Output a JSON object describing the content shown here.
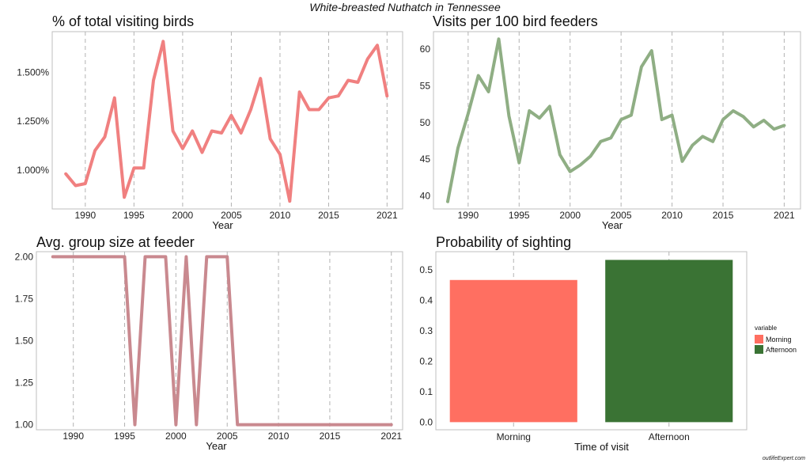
{
  "figure": {
    "suptitle": "White-breasted Nuthatch in Tennessee",
    "credit": "outlifeExpert.com"
  },
  "colors": {
    "pct_line": "#f08080",
    "visits_line": "#8fae84",
    "group_line": "#c9898f",
    "morning": "#ff6f61",
    "afternoon": "#3a7334",
    "grid": "#b3b3b3",
    "frame": "#bfbfbf"
  },
  "chart_data": [
    {
      "type": "line",
      "title": "% of total visiting birds",
      "xlabel": "Year",
      "ylabel": "",
      "x": [
        1988,
        1989,
        1990,
        1991,
        1992,
        1993,
        1994,
        1995,
        1996,
        1997,
        1998,
        1999,
        2000,
        2001,
        2002,
        2003,
        2004,
        2005,
        2006,
        2007,
        2008,
        2009,
        2010,
        2011,
        2012,
        2013,
        2014,
        2015,
        2016,
        2017,
        2018,
        2019,
        2020,
        2021
      ],
      "series": [
        {
          "values": [
            0.98,
            0.92,
            0.93,
            1.1,
            1.17,
            1.37,
            0.86,
            1.01,
            1.01,
            1.46,
            1.66,
            1.2,
            1.11,
            1.2,
            1.09,
            1.2,
            1.19,
            1.28,
            1.19,
            1.31,
            1.47,
            1.16,
            1.08,
            0.84,
            1.4,
            1.31,
            1.31,
            1.37,
            1.38,
            1.46,
            1.45,
            1.57,
            1.64,
            1.38
          ]
        }
      ],
      "xticks": [
        1990,
        1995,
        2000,
        2005,
        2010,
        2015,
        2021
      ],
      "yticks": [
        1.0,
        1.25,
        1.5
      ],
      "ytick_labels": [
        "1.000%",
        "1.250%",
        "1.500%"
      ],
      "xlim": [
        1986.6,
        2022.6
      ],
      "ylim": [
        0.8,
        1.71
      ],
      "grid": "vertical dashed"
    },
    {
      "type": "line",
      "title": "Visits per 100 bird feeders",
      "xlabel": "Year",
      "ylabel": "",
      "x": [
        1988,
        1989,
        1990,
        1991,
        1992,
        1993,
        1994,
        1995,
        1996,
        1997,
        1998,
        1999,
        2000,
        2001,
        2002,
        2003,
        2004,
        2005,
        2006,
        2007,
        2008,
        2009,
        2010,
        2011,
        2012,
        2013,
        2014,
        2015,
        2016,
        2017,
        2018,
        2019,
        2020,
        2021
      ],
      "series": [
        {
          "values": [
            39.2,
            46.5,
            51.2,
            56.4,
            54.2,
            61.4,
            50.9,
            44.5,
            51.6,
            50.6,
            52.2,
            45.6,
            43.3,
            44.2,
            45.4,
            47.4,
            47.9,
            50.4,
            51.0,
            57.6,
            59.8,
            50.4,
            51.0,
            44.7,
            46.9,
            48.1,
            47.4,
            50.4,
            51.6,
            50.8,
            49.4,
            50.3,
            49.1,
            49.6
          ]
        }
      ],
      "xticks": [
        1990,
        1995,
        2000,
        2005,
        2010,
        2015,
        2021
      ],
      "yticks": [
        40,
        45,
        50,
        55,
        60
      ],
      "ytick_labels": [
        "40",
        "45",
        "50",
        "55",
        "60"
      ],
      "xlim": [
        1986.6,
        2022.6
      ],
      "ylim": [
        38.2,
        62.4
      ],
      "grid": "vertical dashed"
    },
    {
      "type": "line",
      "title": "Avg. group size at feeder",
      "xlabel": "Year",
      "ylabel": "",
      "x": [
        1988,
        1989,
        1990,
        1991,
        1992,
        1993,
        1994,
        1995,
        1996,
        1997,
        1998,
        1999,
        2000,
        2001,
        2002,
        2003,
        2004,
        2005,
        2006,
        2007,
        2008,
        2009,
        2010,
        2011,
        2012,
        2013,
        2014,
        2015,
        2016,
        2017,
        2018,
        2019,
        2020,
        2021
      ],
      "series": [
        {
          "values": [
            2,
            2,
            2,
            2,
            2,
            2,
            2,
            2,
            1,
            2,
            2,
            2,
            1,
            2,
            1,
            2,
            2,
            2,
            1,
            1,
            1,
            1,
            1,
            1,
            1,
            1,
            1,
            1,
            1,
            1,
            1,
            1,
            1,
            1
          ]
        }
      ],
      "xticks": [
        1990,
        1995,
        2000,
        2005,
        2010,
        2015,
        2021
      ],
      "yticks": [
        1.0,
        1.25,
        1.5,
        1.75,
        2.0
      ],
      "ytick_labels": [
        "1.00",
        "1.25",
        "1.50",
        "1.75",
        "2.00"
      ],
      "xlim": [
        1986.4,
        2022.1
      ],
      "ylim": [
        0.97,
        2.03
      ],
      "grid": "vertical dashed"
    },
    {
      "type": "bar",
      "title": "Probability of sighting",
      "xlabel": "Time of visit",
      "ylabel": "",
      "categories": [
        "Morning",
        "Afternoon"
      ],
      "values": [
        0.467,
        0.533
      ],
      "yticks": [
        0.0,
        0.1,
        0.2,
        0.3,
        0.4,
        0.5
      ],
      "ytick_labels": [
        "0.0",
        "0.1",
        "0.2",
        "0.3",
        "0.4",
        "0.5"
      ],
      "ylim": [
        -0.025,
        0.56
      ],
      "grid": "vertical dashed",
      "legend": {
        "title": "variable",
        "entries": [
          "Morning",
          "Afternoon"
        ],
        "placement": "right"
      }
    }
  ]
}
